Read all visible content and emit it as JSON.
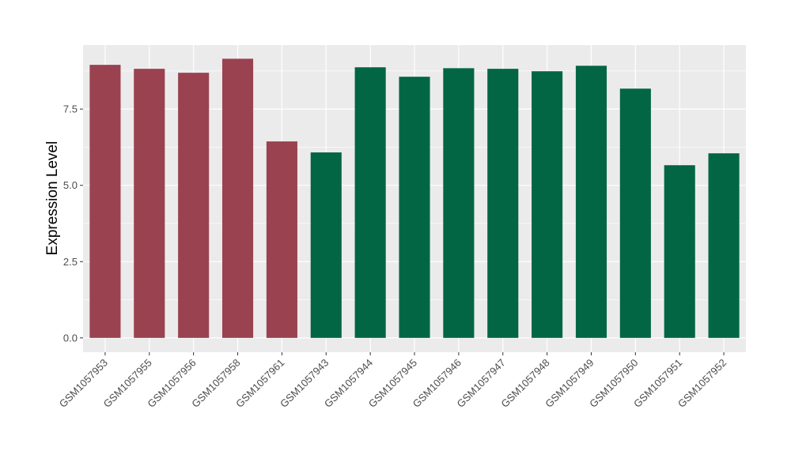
{
  "chart_data": {
    "type": "bar",
    "title": "",
    "xlabel": "",
    "ylabel": "Expression Level",
    "ylim": [
      -0.47,
      9.6
    ],
    "yticks": [
      0.0,
      2.5,
      5.0,
      7.5
    ],
    "ytick_labels": [
      "0.0",
      "2.5",
      "5.0",
      "7.5"
    ],
    "grid": true,
    "legend": "none",
    "categories": [
      "GSM1057953",
      "GSM1057955",
      "GSM1057956",
      "GSM1057958",
      "GSM1057961",
      "GSM1057943",
      "GSM1057944",
      "GSM1057945",
      "GSM1057946",
      "GSM1057947",
      "GSM1057948",
      "GSM1057949",
      "GSM1057950",
      "GSM1057951",
      "GSM1057952"
    ],
    "values": [
      8.95,
      8.82,
      8.69,
      9.15,
      6.44,
      6.08,
      8.87,
      8.56,
      8.84,
      8.82,
      8.74,
      8.92,
      8.17,
      5.66,
      6.05
    ],
    "bar_colors": [
      "#9A4250",
      "#9A4250",
      "#9A4250",
      "#9A4250",
      "#9A4250",
      "#026645",
      "#026645",
      "#026645",
      "#026645",
      "#026645",
      "#026645",
      "#026645",
      "#026645",
      "#026645",
      "#026645"
    ],
    "panel_background": "#EBEBEB"
  }
}
